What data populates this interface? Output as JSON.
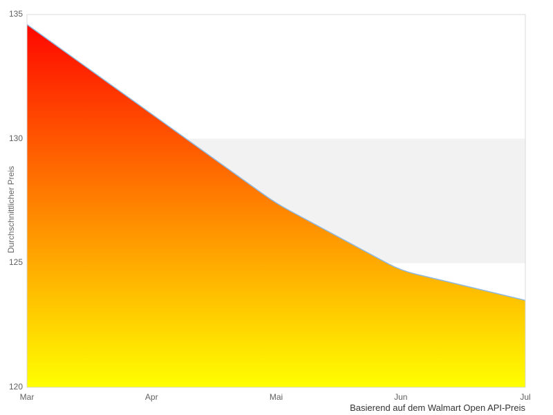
{
  "chart_data": {
    "type": "area",
    "title": "",
    "categories": [
      "Mar",
      "Apr",
      "Mai",
      "Jun",
      "Jul"
    ],
    "values": [
      134.6,
      131.0,
      127.4,
      124.7,
      123.5
    ],
    "xlabel": "",
    "ylabel": "Durchschnittlicher Preis",
    "ylim": [
      120,
      135
    ],
    "yticks": [
      135,
      130,
      125,
      120
    ],
    "plot_band": {
      "from": 125,
      "to": 130,
      "color": "#f2f2f2"
    },
    "grid": false,
    "legend": false,
    "caption": "Basierend auf dem Walmart Open API-Preis",
    "colors": {
      "area_gradient_top": "#ff0000",
      "area_gradient_bottom": "#ffff00",
      "line": "#90b9de",
      "plot_border": "#d9d9d9",
      "axis_label": "#606060",
      "axis_title": "#666666",
      "caption": "#333333",
      "background": "#ffffff"
    }
  }
}
